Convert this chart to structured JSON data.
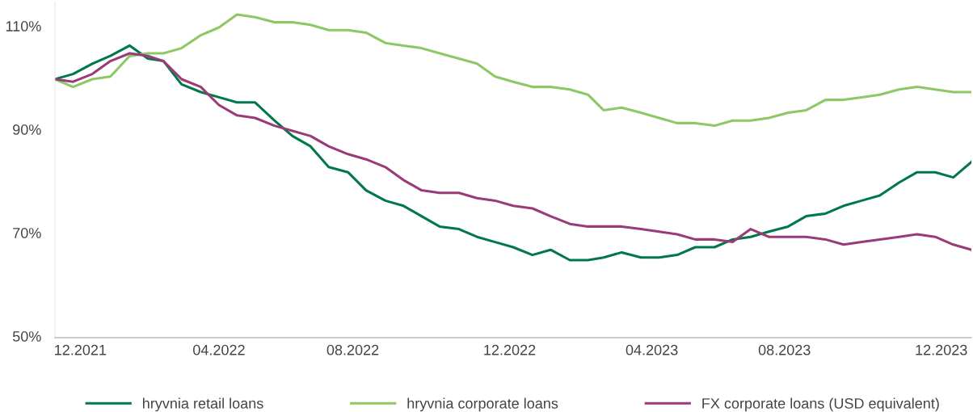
{
  "chart_data": {
    "type": "line",
    "x": [
      "2021-12-01",
      "2021-12-16",
      "2022-01-01",
      "2022-01-16",
      "2022-02-01",
      "2022-02-16",
      "2022-03-01",
      "2022-03-16",
      "2022-04-01",
      "2022-04-16",
      "2022-05-01",
      "2022-05-16",
      "2022-06-01",
      "2022-06-16",
      "2022-07-01",
      "2022-07-16",
      "2022-08-01",
      "2022-08-16",
      "2022-09-01",
      "2022-09-16",
      "2022-10-01",
      "2022-10-16",
      "2022-11-01",
      "2022-11-16",
      "2022-12-01",
      "2022-12-16",
      "2023-01-01",
      "2023-01-16",
      "2023-02-01",
      "2023-02-16",
      "2023-03-01",
      "2023-03-16",
      "2023-04-01",
      "2023-04-16",
      "2023-05-01",
      "2023-05-16",
      "2023-06-01",
      "2023-06-16",
      "2023-07-01",
      "2023-07-16",
      "2023-08-01",
      "2023-08-16",
      "2023-09-01",
      "2023-09-16",
      "2023-10-01",
      "2023-10-16",
      "2023-11-01",
      "2023-11-16",
      "2023-12-01",
      "2023-12-16",
      "2023-12-31"
    ],
    "series": [
      {
        "name": "hryvnia retail loans",
        "color": "#00784a",
        "values": [
          100,
          101,
          103,
          104.5,
          106.5,
          104,
          103.5,
          99,
          97.5,
          96.5,
          95.5,
          95.5,
          92,
          89,
          87,
          83,
          82,
          78.5,
          76.5,
          75.5,
          73.5,
          71.5,
          71,
          69.5,
          68.5,
          67.5,
          66,
          67,
          65,
          65,
          65.5,
          66.5,
          65.5,
          65.5,
          66,
          67.5,
          67.5,
          69,
          69.5,
          70.5,
          71.5,
          73.5,
          74,
          75.5,
          76.5,
          77.5,
          80,
          82,
          82,
          81,
          84
        ]
      },
      {
        "name": "hryvnia corporate loans",
        "color": "#8cc864",
        "values": [
          100,
          98.5,
          100,
          100.5,
          104.5,
          105,
          105,
          106,
          108.5,
          110,
          112.5,
          112,
          111,
          111,
          110.5,
          109.5,
          109.5,
          109,
          107,
          106.5,
          106,
          105,
          104,
          103,
          100.5,
          99.5,
          98.5,
          98.5,
          98,
          97,
          94,
          94.5,
          93.5,
          92.5,
          91.5,
          91.5,
          91,
          92,
          92,
          92.5,
          93.5,
          94,
          96,
          96,
          96.5,
          97,
          98,
          98.5,
          98,
          97.5,
          97.5
        ]
      },
      {
        "name": "FX corporate loans (USD equivalent)",
        "color": "#9b3a78",
        "values": [
          100,
          99.5,
          101,
          103.5,
          105,
          104.5,
          103.5,
          100,
          98.5,
          95,
          93,
          92.5,
          91,
          90,
          89,
          87,
          85.5,
          84.5,
          83,
          80.5,
          78.5,
          78,
          78,
          77,
          76.5,
          75.5,
          75,
          73.5,
          72,
          71.5,
          71.5,
          71.5,
          71,
          70.5,
          70,
          69,
          69,
          68.5,
          71,
          69.5,
          69.5,
          69.5,
          69,
          68,
          68.5,
          69,
          69.5,
          70,
          69.5,
          68,
          67
        ]
      }
    ],
    "xlim": [
      "2021-12-01",
      "2023-12-31"
    ],
    "xticks": [
      {
        "value": "2021-12-22",
        "label": "12.2021"
      },
      {
        "value": "2022-04-16",
        "label": "04.2022"
      },
      {
        "value": "2022-08-05",
        "label": "08.2022"
      },
      {
        "value": "2022-12-13",
        "label": "12.2022"
      },
      {
        "value": "2023-04-10",
        "label": "04.2023"
      },
      {
        "value": "2023-07-29",
        "label": "08.2023"
      },
      {
        "value": "2023-12-06",
        "label": "12.2023"
      }
    ],
    "ylim": [
      50,
      115
    ],
    "yticks": [
      {
        "value": 50,
        "label": "50%"
      },
      {
        "value": 70,
        "label": "70%"
      },
      {
        "value": 90,
        "label": "90%"
      },
      {
        "value": 110,
        "label": "110%"
      }
    ],
    "grid": false,
    "legend": "bottom",
    "marker": "none",
    "line_style": "solid"
  }
}
